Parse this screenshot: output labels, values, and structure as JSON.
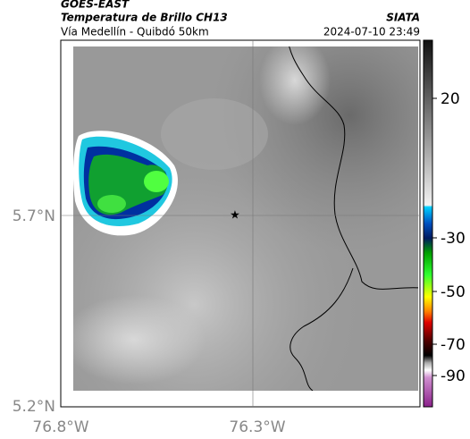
{
  "header": {
    "title": "GOES-EAST",
    "subtitle": "Temperatura de Brillo CH13",
    "route": "Vía Medellín - Quibdó 50km",
    "source": "SIATA",
    "timestamp": "2024-07-10 23:49"
  },
  "map": {
    "lat_labels": [
      "5.7°N",
      "5.2°N"
    ],
    "lon_labels": [
      "76.8°W",
      "76.3°W"
    ]
  },
  "colorbar": {
    "ticks": [
      20,
      -30,
      -50,
      -70,
      -90
    ]
  }
}
